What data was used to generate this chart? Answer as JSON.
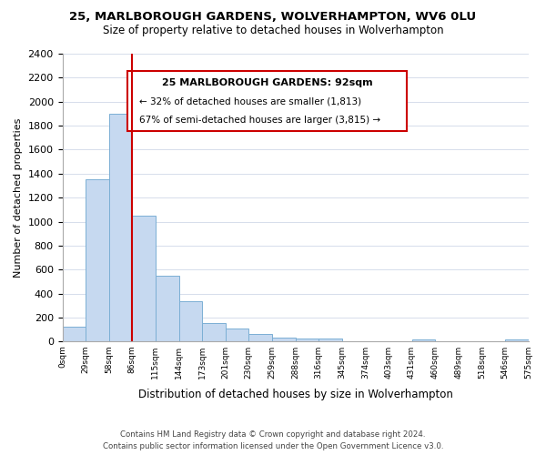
{
  "title": "25, MARLBOROUGH GARDENS, WOLVERHAMPTON, WV6 0LU",
  "subtitle": "Size of property relative to detached houses in Wolverhampton",
  "xlabel": "Distribution of detached houses by size in Wolverhampton",
  "ylabel": "Number of detached properties",
  "bin_labels": [
    "0sqm",
    "29sqm",
    "58sqm",
    "86sqm",
    "115sqm",
    "144sqm",
    "173sqm",
    "201sqm",
    "230sqm",
    "259sqm",
    "288sqm",
    "316sqm",
    "345sqm",
    "374sqm",
    "403sqm",
    "431sqm",
    "460sqm",
    "489sqm",
    "518sqm",
    "546sqm",
    "575sqm"
  ],
  "bar_heights": [
    125,
    1350,
    1900,
    1050,
    550,
    340,
    155,
    110,
    60,
    30,
    25,
    25,
    0,
    0,
    0,
    20,
    0,
    0,
    0,
    20
  ],
  "bar_color": "#c6d9f0",
  "bar_edge_color": "#7bafd4",
  "annotation_title": "25 MARLBOROUGH GARDENS: 92sqm",
  "annotation_line1": "← 32% of detached houses are smaller (1,813)",
  "annotation_line2": "67% of semi-detached houses are larger (3,815) →",
  "vline_pos": 3,
  "vline_color": "#cc0000",
  "ylim": [
    0,
    2400
  ],
  "yticks": [
    0,
    200,
    400,
    600,
    800,
    1000,
    1200,
    1400,
    1600,
    1800,
    2000,
    2200,
    2400
  ],
  "footer1": "Contains HM Land Registry data © Crown copyright and database right 2024.",
  "footer2": "Contains public sector information licensed under the Open Government Licence v3.0.",
  "background_color": "#ffffff"
}
